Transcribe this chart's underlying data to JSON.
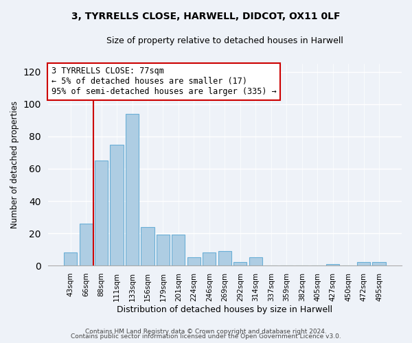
{
  "title1": "3, TYRRELLS CLOSE, HARWELL, DIDCOT, OX11 0LF",
  "title2": "Size of property relative to detached houses in Harwell",
  "xlabel": "Distribution of detached houses by size in Harwell",
  "ylabel": "Number of detached properties",
  "bar_labels": [
    "43sqm",
    "66sqm",
    "88sqm",
    "111sqm",
    "133sqm",
    "156sqm",
    "179sqm",
    "201sqm",
    "224sqm",
    "246sqm",
    "269sqm",
    "292sqm",
    "314sqm",
    "337sqm",
    "359sqm",
    "382sqm",
    "405sqm",
    "427sqm",
    "450sqm",
    "472sqm",
    "495sqm"
  ],
  "bar_values": [
    8,
    26,
    65,
    75,
    94,
    24,
    19,
    19,
    5,
    8,
    9,
    2,
    5,
    0,
    0,
    0,
    0,
    1,
    0,
    2,
    2
  ],
  "bar_color": "#aecde3",
  "bar_edge_color": "#6aafd6",
  "vline_x": 1.5,
  "vline_color": "#cc0000",
  "ylim": [
    0,
    125
  ],
  "yticks": [
    0,
    20,
    40,
    60,
    80,
    100,
    120
  ],
  "annotation_line1": "3 TYRRELLS CLOSE: 77sqm",
  "annotation_line2": "← 5% of detached houses are smaller (17)",
  "annotation_line3": "95% of semi-detached houses are larger (335) →",
  "box_color": "#ffffff",
  "box_edge_color": "#cc0000",
  "footer1": "Contains HM Land Registry data © Crown copyright and database right 2024.",
  "footer2": "Contains public sector information licensed under the Open Government Licence v3.0.",
  "bg_color": "#eef2f8",
  "title1_fontsize": 10,
  "title2_fontsize": 9,
  "ylabel_fontsize": 8.5,
  "xlabel_fontsize": 9,
  "tick_fontsize": 7.5,
  "footer_fontsize": 6.5
}
